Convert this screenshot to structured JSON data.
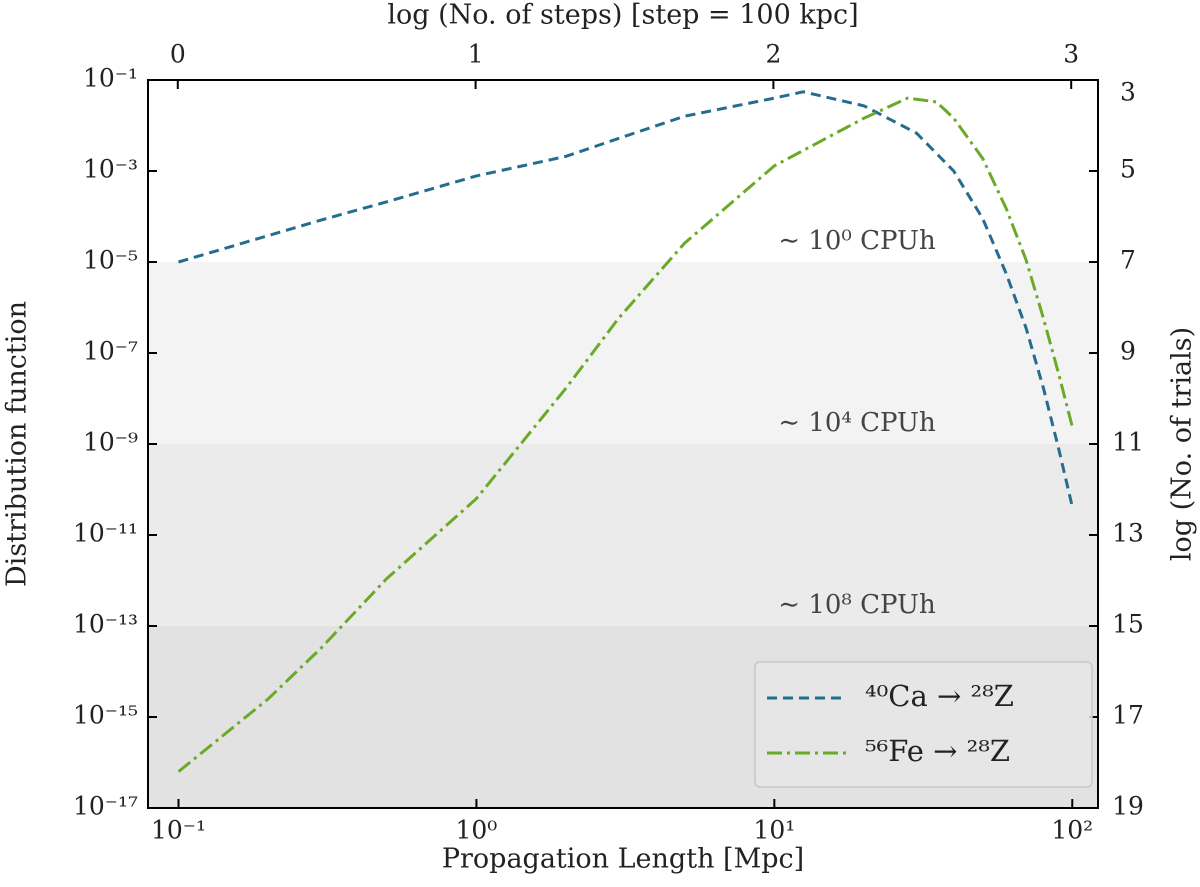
{
  "chart_data": {
    "type": "line",
    "x_label": "Propagation Length [Mpc]",
    "y_label": "Distribution function",
    "x2_label": "log (No. of steps) [step = 100 kpc]",
    "y2_label": "log (No. of trials)",
    "xscale": "log",
    "yscale": "log",
    "xlim": [
      0.079,
      122
    ],
    "ylim": [
      1e-17,
      0.1
    ],
    "x2lim": [
      -0.1,
      3.09
    ],
    "y2lim": [
      19,
      3
    ],
    "xticks": [
      {
        "value": 0.1,
        "label": "10⁻¹"
      },
      {
        "value": 1,
        "label": "10⁰"
      },
      {
        "value": 10,
        "label": "10¹"
      },
      {
        "value": 100,
        "label": "10²"
      }
    ],
    "yticks": [
      {
        "value": 0.1,
        "label": "10⁻¹"
      },
      {
        "value": 0.001,
        "label": "10⁻³"
      },
      {
        "value": 1e-05,
        "label": "10⁻⁵"
      },
      {
        "value": 1e-07,
        "label": "10⁻⁷"
      },
      {
        "value": 1e-09,
        "label": "10⁻⁹"
      },
      {
        "value": 1e-11,
        "label": "10⁻¹¹"
      },
      {
        "value": 1e-13,
        "label": "10⁻¹³"
      },
      {
        "value": 1e-15,
        "label": "10⁻¹⁵"
      },
      {
        "value": 1e-17,
        "label": "10⁻¹⁷"
      }
    ],
    "x2ticks": [
      0,
      1,
      2,
      3
    ],
    "y2ticks": [
      3,
      5,
      7,
      9,
      11,
      13,
      15,
      17,
      19
    ],
    "bands": [
      {
        "from": 1e-05,
        "to": 1e-09,
        "color": "#f3f3f3",
        "label": "∼ 10⁰ CPUh"
      },
      {
        "from": 1e-09,
        "to": 1e-13,
        "color": "#ebebeb",
        "label": "∼ 10⁴ CPUh"
      },
      {
        "from": 1e-13,
        "to": 1e-17,
        "color": "#e2e2e2",
        "label": "∼ 10⁸ CPUh"
      }
    ],
    "legend": "lower right",
    "series": [
      {
        "name": "⁴⁰Ca → ²⁸Z",
        "color": "#256d8e",
        "linestyle": "dashed",
        "x": [
          0.1,
          0.3,
          0.5,
          1,
          2,
          3,
          5,
          10,
          12.5,
          20,
          30,
          40,
          50,
          60,
          70,
          80,
          90,
          100
        ],
        "values": [
          1e-05,
          8.3e-05,
          0.00021,
          0.00078,
          0.0021,
          0.0052,
          0.016,
          0.04,
          0.055,
          0.027,
          0.0068,
          0.001,
          9.1e-05,
          5.6e-06,
          3.5e-07,
          1.7e-08,
          7.9e-10,
          4.2e-11
        ]
      },
      {
        "name": "⁵⁶Fe → ²⁸Z",
        "color": "#6aaa28",
        "linestyle": "dashdot",
        "x": [
          0.1,
          0.2,
          0.3,
          0.5,
          1,
          2,
          3,
          5,
          10,
          20,
          28,
          35,
          40,
          50,
          60,
          70,
          80,
          90,
          100
        ],
        "values": [
          6.3e-17,
          2.5e-15,
          3.2e-14,
          1.1e-12,
          6.3e-11,
          1.7e-08,
          5.8e-07,
          2.6e-05,
          0.0013,
          0.0145,
          0.04,
          0.033,
          0.0145,
          0.0019,
          0.00015,
          1.1e-05,
          5.8e-07,
          3.5e-08,
          2.4e-09
        ]
      }
    ]
  }
}
